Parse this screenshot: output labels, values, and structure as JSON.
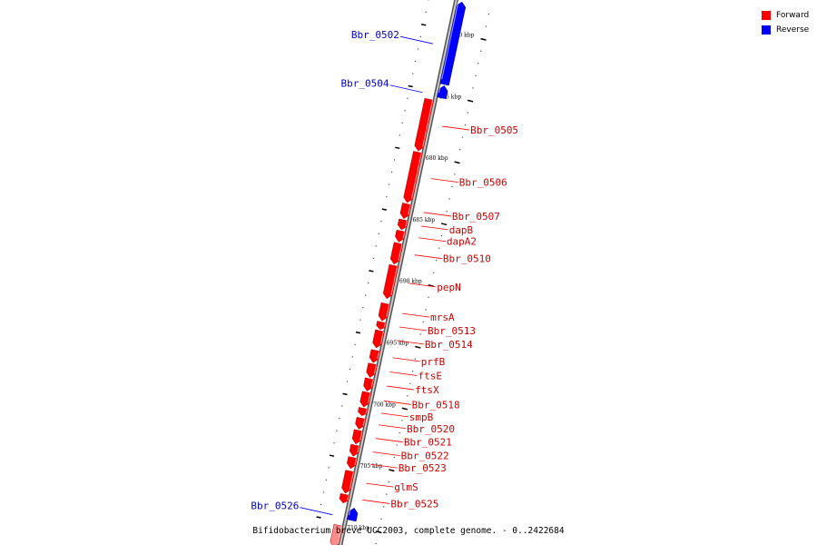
{
  "legend": [
    {
      "label": "Forward",
      "color": "#ff0000"
    },
    {
      "label": "Reverse",
      "color": "#0000ff"
    }
  ],
  "caption": "Bifidobacterium breve UCC2003, complete genome. - 0..2422684",
  "colors": {
    "forward": "#ff0000",
    "reverse": "#0000ff",
    "backbone": "#8a8a8a",
    "leader": "#ff0000",
    "leader_rev": "#0000ff"
  },
  "scale": {
    "unit": "kbp",
    "labeled_ticks": [
      670,
      675,
      680,
      685,
      690,
      695,
      700,
      705,
      710
    ]
  },
  "genes": [
    {
      "name": "Bbr_0502",
      "strand": "reverse",
      "start": 667.5,
      "end": 674.2
    },
    {
      "name": "Bbr_0504",
      "strand": "reverse",
      "start": 674.3,
      "end": 675.3
    },
    {
      "name": "Bbr_0505",
      "strand": "forward",
      "start": 675.6,
      "end": 679.8
    },
    {
      "name": "Bbr_0506",
      "strand": "forward",
      "start": 679.9,
      "end": 684.0
    },
    {
      "name": "Bbr_0507",
      "strand": "forward",
      "start": 684.1,
      "end": 685.3
    },
    {
      "name": "dapB",
      "strand": "forward",
      "start": 685.4,
      "end": 686.2
    },
    {
      "name": "dapA2",
      "strand": "forward",
      "start": 686.3,
      "end": 687.2
    },
    {
      "name": "Bbr_0510",
      "strand": "forward",
      "start": 687.3,
      "end": 689.0
    },
    {
      "name": "pepN",
      "strand": "forward",
      "start": 689.1,
      "end": 691.8
    },
    {
      "name": "mrsA",
      "strand": "forward",
      "start": 692.2,
      "end": 693.6
    },
    {
      "name": "Bbr_0513",
      "strand": "forward",
      "start": 693.7,
      "end": 694.3
    },
    {
      "name": "Bbr_0514",
      "strand": "forward",
      "start": 694.4,
      "end": 695.8
    },
    {
      "name": "prfB",
      "strand": "forward",
      "start": 696.0,
      "end": 697.0
    },
    {
      "name": "ftsE",
      "strand": "forward",
      "start": 697.1,
      "end": 698.2
    },
    {
      "name": "ftsX",
      "strand": "forward",
      "start": 698.3,
      "end": 699.3
    },
    {
      "name": "Bbr_0518",
      "strand": "forward",
      "start": 699.4,
      "end": 700.6
    },
    {
      "name": "smpB",
      "strand": "forward",
      "start": 700.7,
      "end": 701.3
    },
    {
      "name": "Bbr_0520",
      "strand": "forward",
      "start": 701.5,
      "end": 702.4
    },
    {
      "name": "Bbr_0521",
      "strand": "forward",
      "start": 702.5,
      "end": 703.6
    },
    {
      "name": "Bbr_0522",
      "strand": "forward",
      "start": 703.7,
      "end": 704.6
    },
    {
      "name": "Bbr_0523",
      "strand": "forward",
      "start": 704.7,
      "end": 705.6
    },
    {
      "name": "glmS",
      "strand": "forward",
      "start": 705.8,
      "end": 707.6
    },
    {
      "name": "Bbr_0525",
      "strand": "forward",
      "start": 707.7,
      "end": 708.4
    },
    {
      "name": "Bbr_0526",
      "strand": "reverse",
      "start": 708.6,
      "end": 709.6
    },
    {
      "name": "",
      "strand": "forward",
      "start": 710.2,
      "end": 712.0
    }
  ]
}
